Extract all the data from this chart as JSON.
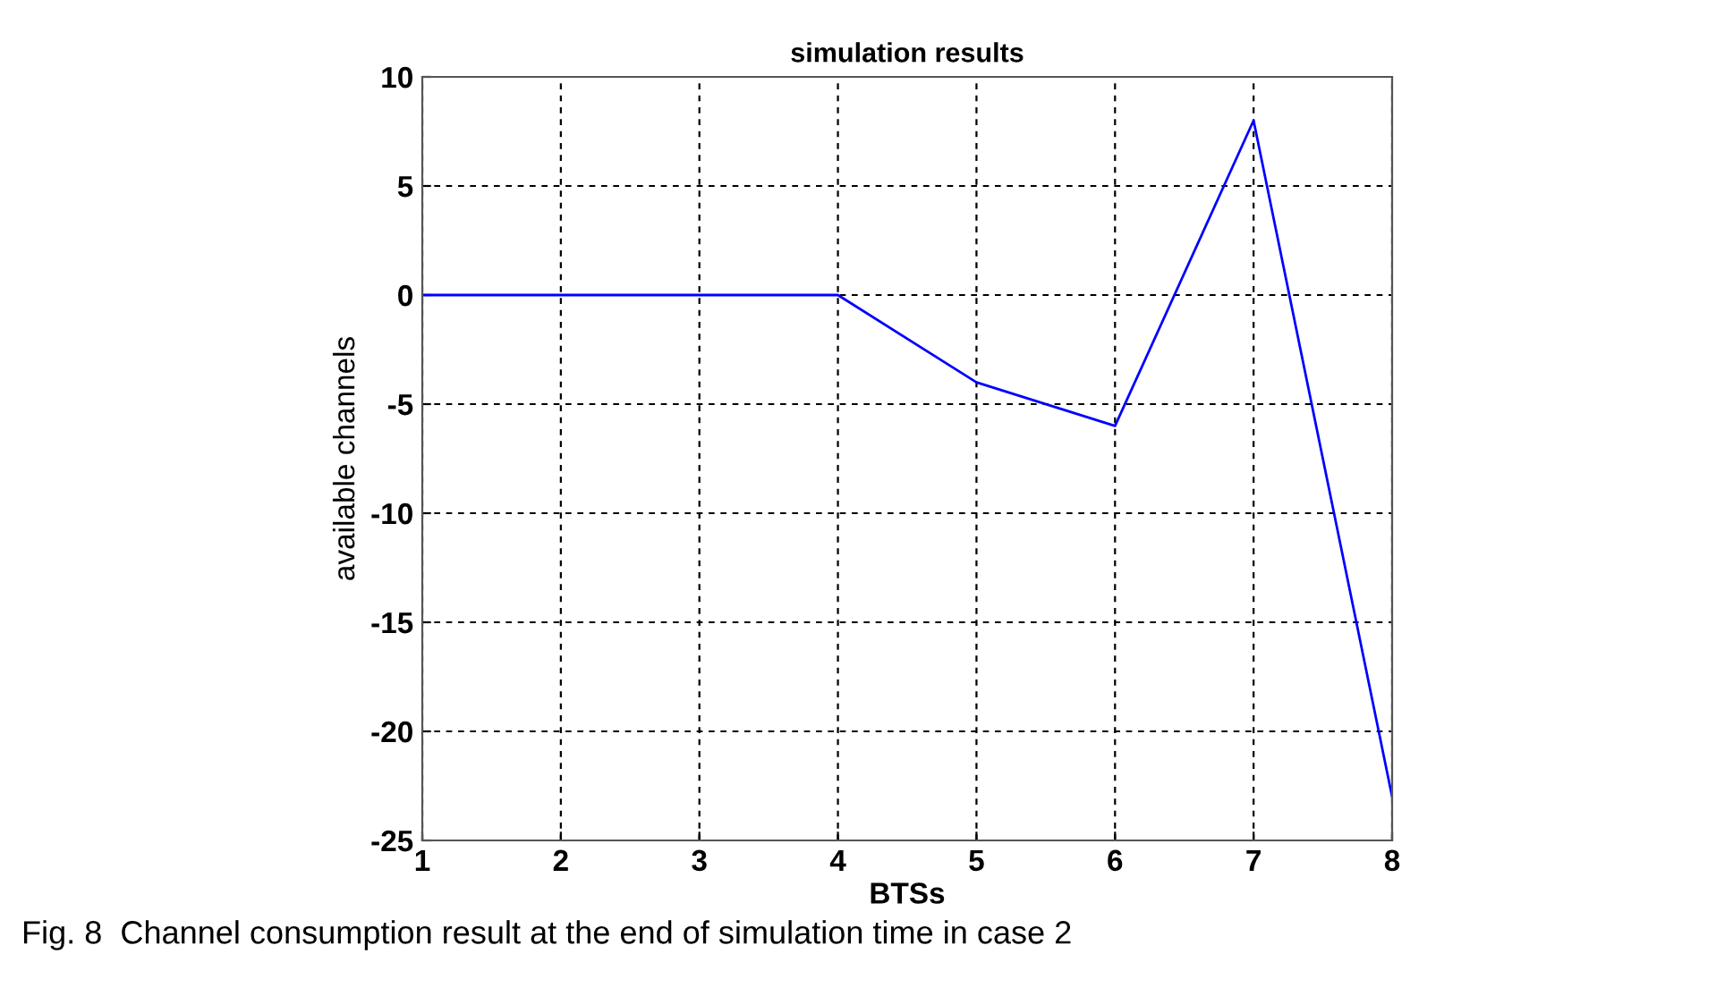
{
  "chart_data": {
    "type": "line",
    "title": "simulation results",
    "xlabel": "BTSs",
    "ylabel": "available channels",
    "x": [
      1,
      2,
      3,
      4,
      5,
      6,
      7,
      8
    ],
    "series": [
      {
        "color": "#0000ff",
        "values": [
          0,
          0,
          0,
          0,
          -4,
          -6,
          8,
          -23
        ]
      }
    ],
    "xlim": [
      1,
      8
    ],
    "xticks": [
      1,
      2,
      3,
      4,
      5,
      6,
      7,
      8
    ],
    "ylim": [
      -25,
      10
    ],
    "yticks": [
      -25,
      -20,
      -15,
      -10,
      -5,
      0,
      5,
      10
    ],
    "grid": true,
    "line_style": "solid",
    "annotations": [
      "Fig. 8  Channel consumption result at the end of simulation time in case 2"
    ]
  }
}
